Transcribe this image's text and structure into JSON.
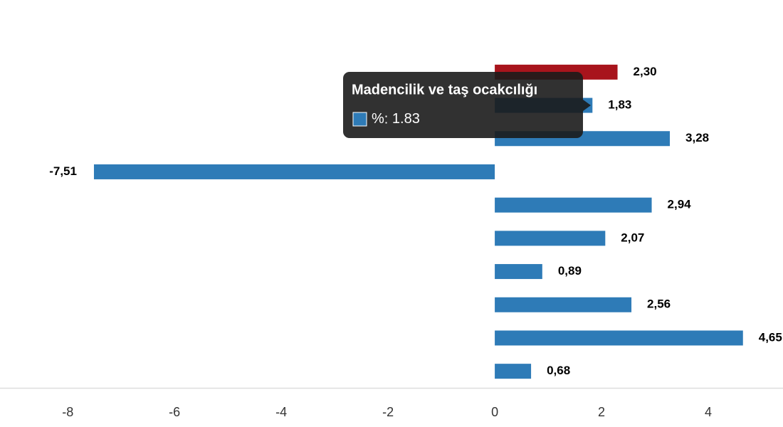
{
  "chart_data": {
    "type": "hbar",
    "categories": [
      null,
      "Madencilik ve taş ocakcılığı",
      null,
      null,
      null,
      null,
      null,
      null,
      null,
      null
    ],
    "series": [
      {
        "name": "%",
        "colors": [
          "#a8141c",
          "#2e7bb7",
          "#2e7bb7",
          "#2e7bb7",
          "#2e7bb7",
          "#2e7bb7",
          "#2e7bb7",
          "#2e7bb7",
          "#2e7bb7",
          "#2e7bb7"
        ],
        "values": [
          2.3,
          1.83,
          3.28,
          -7.51,
          2.94,
          2.07,
          0.89,
          2.56,
          4.65,
          0.68
        ],
        "value_labels": [
          "2,30",
          "1,83",
          "3,28",
          "-7,51",
          "2,94",
          "2,07",
          "0,89",
          "2,56",
          "4,65",
          "0,68"
        ]
      }
    ],
    "xlim": [
      -9.27,
      5.4
    ],
    "xticks": [
      -8,
      -6,
      -4,
      -2,
      0,
      2,
      4
    ],
    "grid": false
  }
}
